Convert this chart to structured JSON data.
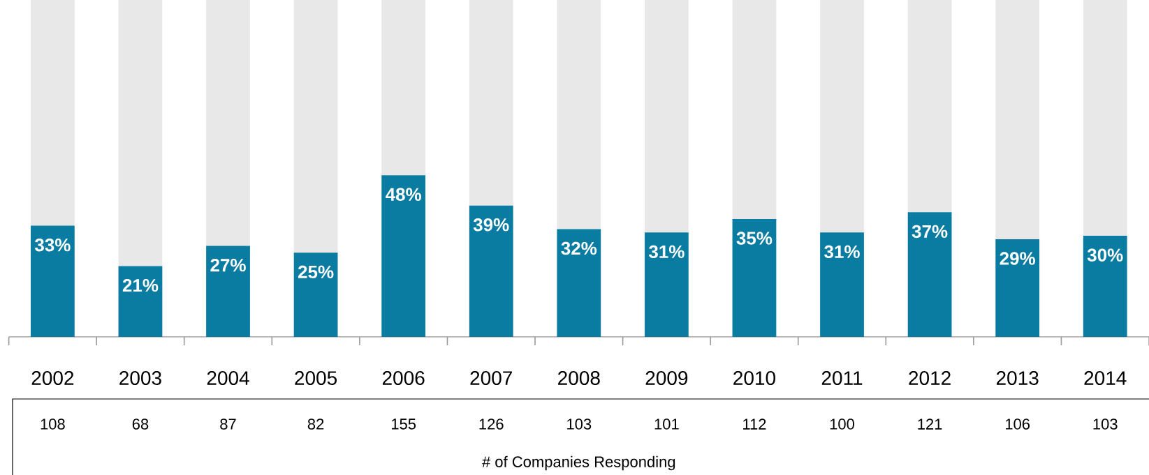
{
  "chart_data": {
    "type": "bar",
    "stacked": true,
    "categories": [
      "2002",
      "2003",
      "2004",
      "2005",
      "2006",
      "2007",
      "2008",
      "2009",
      "2010",
      "2011",
      "2012",
      "2013",
      "2014"
    ],
    "series": [
      {
        "color": "#0a7ca1",
        "values": [
          33,
          21,
          27,
          25,
          48,
          39,
          32,
          31,
          35,
          31,
          37,
          29,
          30
        ],
        "value_labels": [
          "33%",
          "21%",
          "27%",
          "25%",
          "48%",
          "39%",
          "32%",
          "31%",
          "35%",
          "31%",
          "37%",
          "29%",
          "30%"
        ]
      },
      {
        "color": "#e8e8e8",
        "values": [
          67,
          79,
          73,
          75,
          52,
          61,
          68,
          69,
          65,
          69,
          63,
          71,
          70
        ]
      }
    ],
    "xlabel": "# of Companies Responding",
    "annotations": [
      "108",
      "68",
      "87",
      "82",
      "155",
      "126",
      "103",
      "101",
      "112",
      "100",
      "121",
      "106",
      "103"
    ]
  }
}
